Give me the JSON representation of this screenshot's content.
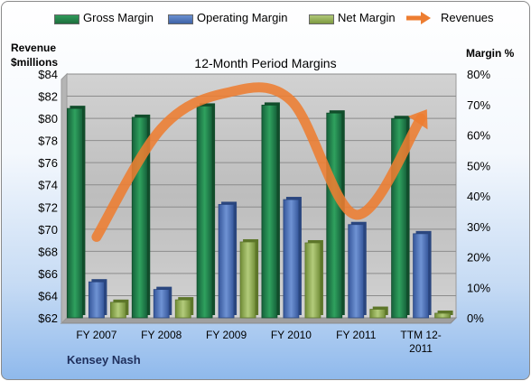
{
  "chart_data": {
    "type": "bar",
    "title": "12-Month Period Margins",
    "company": "Kensey Nash",
    "ylabel_left": [
      "Revenue",
      "$millions"
    ],
    "ylabel_right": "Margin %",
    "categories": [
      [
        "FY 2007"
      ],
      [
        "FY 2008"
      ],
      [
        "FY 2009"
      ],
      [
        "FY 2010"
      ],
      [
        "FY 2011"
      ],
      [
        "TTM 12-",
        "2011"
      ]
    ],
    "y_left": {
      "min": 62,
      "max": 84,
      "step": 2,
      "prefix": "$"
    },
    "y_right": {
      "min": 0,
      "max": 80,
      "step": 10,
      "suffix": "%"
    },
    "series": [
      {
        "name": "Gross Margin",
        "type": "bar",
        "axis": "right",
        "color": "#1e7b45",
        "values": [
          68.7,
          65.8,
          69.5,
          69.8,
          67.2,
          65.4
        ]
      },
      {
        "name": "Operating Margin",
        "type": "bar",
        "axis": "right",
        "color": "#4a6fb5",
        "values": [
          11.8,
          9.3,
          37.2,
          38.8,
          30.6,
          27.6
        ]
      },
      {
        "name": "Net Margin",
        "type": "bar",
        "axis": "right",
        "color": "#8fad4f",
        "values": [
          5.1,
          5.9,
          24.9,
          24.6,
          2.8,
          1.5
        ]
      },
      {
        "name": "Revenues",
        "type": "line",
        "axis": "left",
        "color": "#ed7d31",
        "values": [
          69.3,
          79.1,
          82.3,
          81.6,
          71.3,
          80.0
        ]
      }
    ],
    "grid": true,
    "legend_position": "top"
  }
}
